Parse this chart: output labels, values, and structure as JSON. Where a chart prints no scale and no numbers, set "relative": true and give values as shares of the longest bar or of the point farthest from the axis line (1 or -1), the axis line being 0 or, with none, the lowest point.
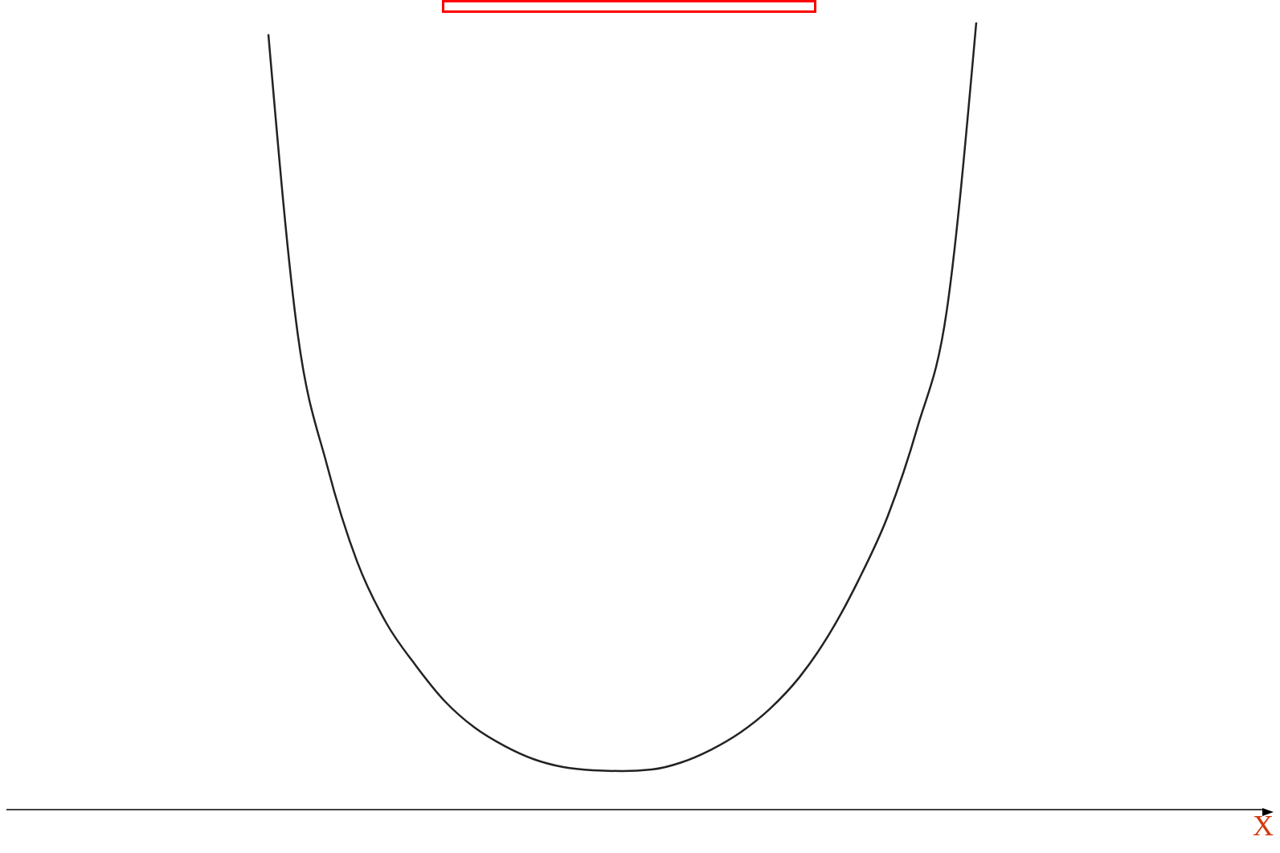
{
  "chart_data": {
    "type": "line",
    "annotations": [
      "X"
    ],
    "relative": true,
    "color": "#222222",
    "categories": [
      null,
      null,
      null,
      null,
      null,
      null,
      null,
      null,
      null,
      null,
      null,
      null,
      null,
      null,
      null,
      null,
      null,
      null,
      null,
      null,
      null,
      null,
      null,
      null,
      null
    ],
    "values": [
      0.985,
      0.603,
      0.436,
      0.316,
      0.237,
      0.183,
      0.137,
      0.104,
      0.081,
      0.064,
      0.054,
      0.05,
      0.049,
      0.051,
      0.06,
      0.076,
      0.098,
      0.128,
      0.168,
      0.222,
      0.291,
      0.373,
      0.485,
      0.634,
      1
    ]
  }
}
